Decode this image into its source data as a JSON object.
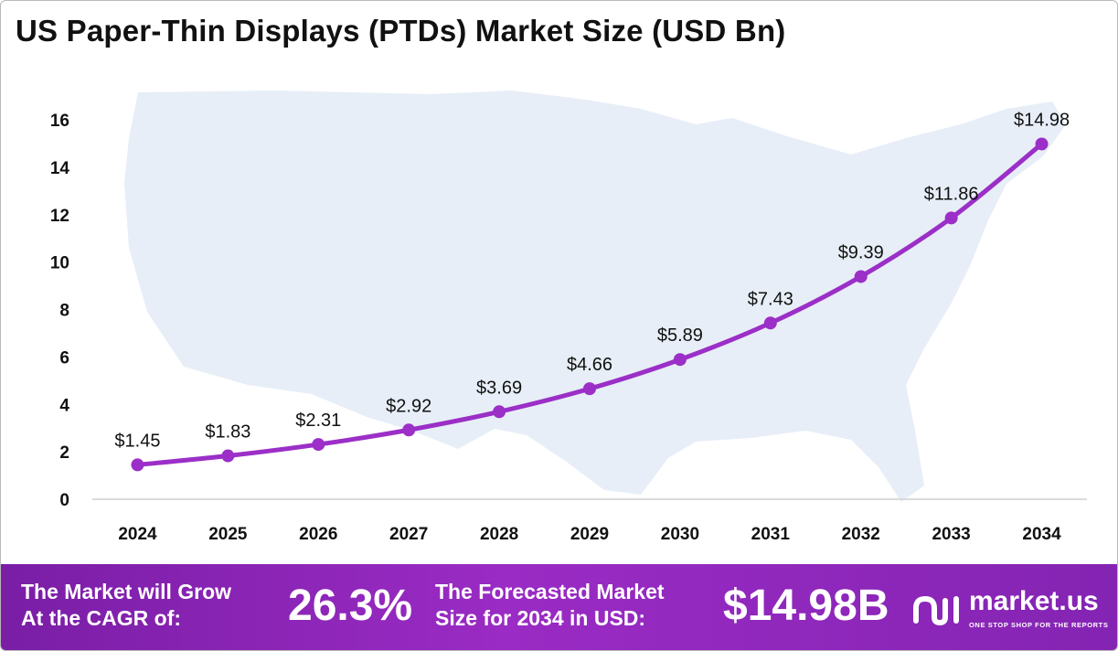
{
  "title": "US Paper-Thin Displays (PTDs) Market Size (USD Bn)",
  "chart_data": {
    "type": "line",
    "categories": [
      "2024",
      "2025",
      "2026",
      "2027",
      "2028",
      "2029",
      "2030",
      "2031",
      "2032",
      "2033",
      "2034"
    ],
    "values": [
      1.45,
      1.83,
      2.31,
      2.92,
      3.69,
      4.66,
      5.89,
      7.43,
      9.39,
      11.86,
      14.98
    ],
    "data_labels": [
      "$1.45",
      "$1.83",
      "$2.31",
      "$2.92",
      "$3.69",
      "$4.66",
      "$5.89",
      "$7.43",
      "$9.39",
      "$11.86",
      "$14.98"
    ],
    "yticks": [
      "0",
      "2",
      "4",
      "6",
      "8",
      "10",
      "12",
      "14",
      "16"
    ],
    "ylim": [
      0,
      16
    ],
    "xlabel": "",
    "ylabel": "",
    "grid": false,
    "legend": "none",
    "line_color": "#9b2fc7"
  },
  "footer": {
    "cagr_label": "The Market will Grow\nAt the CAGR of:",
    "cagr_value": "26.3%",
    "forecast_label": "The Forecasted Market\nSize for 2034 in USD:",
    "forecast_value": "$14.98B",
    "brand_name": "market.us",
    "brand_tagline": "ONE STOP SHOP FOR THE REPORTS"
  },
  "colors": {
    "accent": "#9b2fc7",
    "footer_bg": "#8a25b8",
    "map": "#e6eef7"
  },
  "icons": {
    "map_background": "us-map-icon",
    "brand_logo": "market-us-logo-icon"
  }
}
